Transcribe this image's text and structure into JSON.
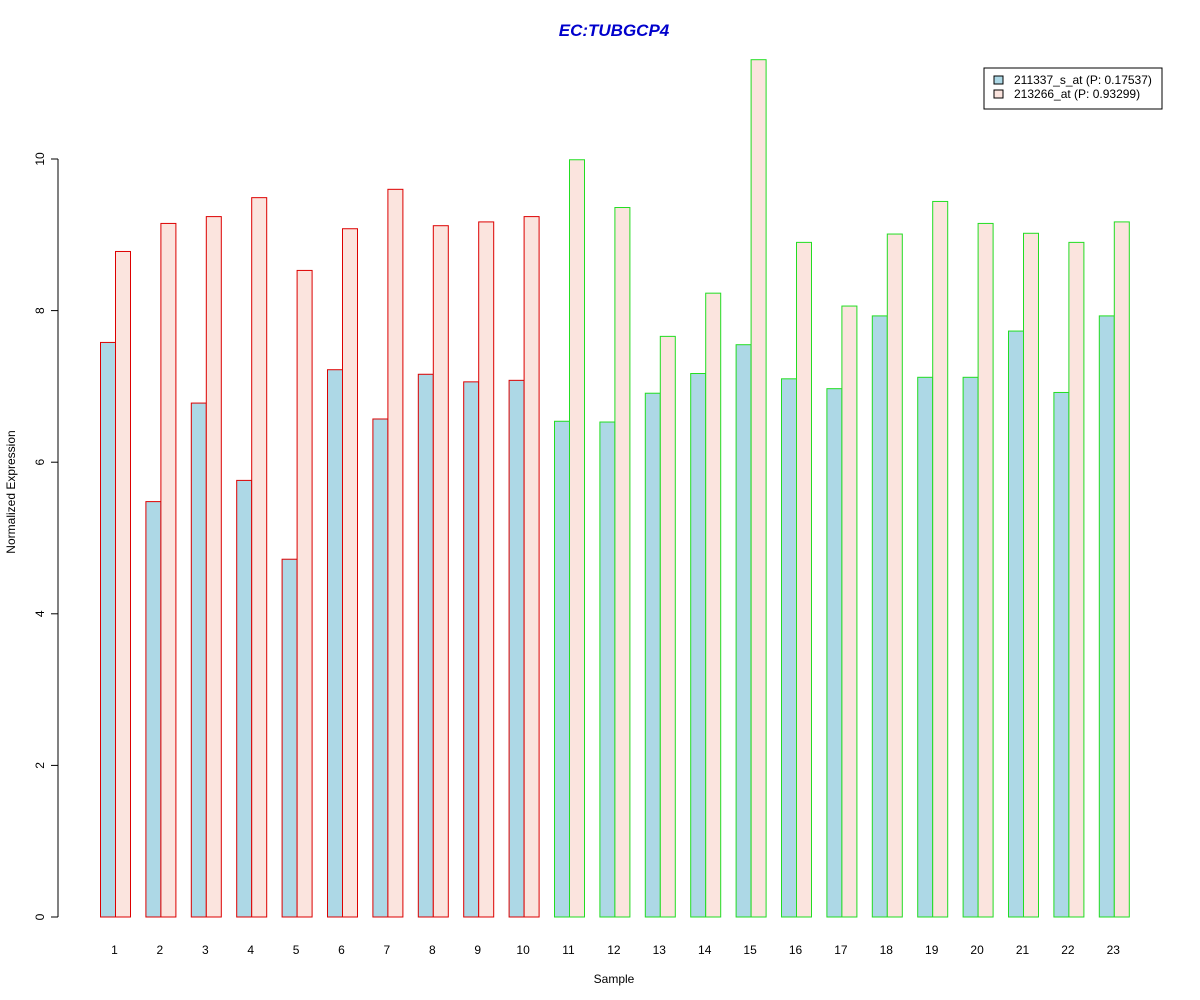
{
  "chart_data": {
    "type": "bar",
    "title": "EC:TUBGCP4",
    "xlabel": "Sample",
    "ylabel": "Normalized Expression",
    "ylim": [
      0,
      11.3
    ],
    "yticks": [
      0,
      2,
      4,
      6,
      8,
      10
    ],
    "grid": false,
    "legend_placement": "top-right",
    "categories": [
      "1",
      "2",
      "3",
      "4",
      "5",
      "6",
      "7",
      "8",
      "9",
      "10",
      "11",
      "12",
      "13",
      "14",
      "15",
      "16",
      "17",
      "18",
      "19",
      "20",
      "21",
      "22",
      "23"
    ],
    "series": [
      {
        "name": "211337_s_at (P: 0.17537)",
        "fill": "#add8e6",
        "values": [
          7.58,
          5.48,
          6.78,
          5.76,
          4.72,
          7.22,
          6.57,
          7.16,
          7.06,
          7.08,
          6.54,
          6.53,
          6.91,
          7.17,
          7.55,
          7.1,
          6.97,
          7.93,
          7.12,
          7.12,
          7.73,
          6.92,
          7.93
        ]
      },
      {
        "name": "213266_at (P: 0.93299)",
        "fill": "#fbe4de",
        "values": [
          8.78,
          9.15,
          9.24,
          9.49,
          8.53,
          9.08,
          9.6,
          9.12,
          9.17,
          9.24,
          9.99,
          9.36,
          7.66,
          8.23,
          11.31,
          8.9,
          8.06,
          9.01,
          9.44,
          9.15,
          9.02,
          8.9,
          9.17
        ]
      }
    ],
    "group_border_colors": [
      "#dd0000",
      "#dd0000",
      "#dd0000",
      "#dd0000",
      "#dd0000",
      "#dd0000",
      "#dd0000",
      "#dd0000",
      "#dd0000",
      "#dd0000",
      "#22dd22",
      "#22dd22",
      "#22dd22",
      "#22dd22",
      "#22dd22",
      "#22dd22",
      "#22dd22",
      "#22dd22",
      "#22dd22",
      "#22dd22",
      "#22dd22",
      "#22dd22",
      "#22dd22"
    ],
    "title_color": "#0000cc"
  }
}
